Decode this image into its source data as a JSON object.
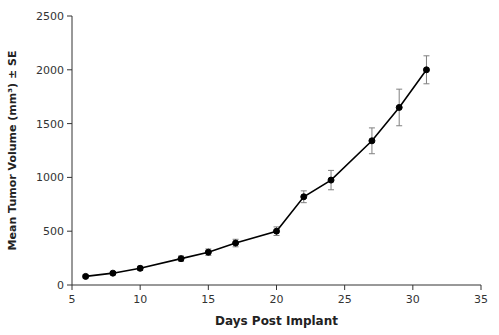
{
  "chart_data": {
    "type": "line",
    "xlabel": "Days Post Implant",
    "ylabel": "Mean Tumor Volume (mm³) ± SE",
    "x": [
      6,
      8,
      10,
      13,
      15,
      17,
      20,
      22,
      24,
      27,
      29,
      31
    ],
    "values": [
      80,
      110,
      155,
      245,
      305,
      390,
      500,
      820,
      975,
      1340,
      1650,
      2000
    ],
    "errors": [
      15,
      15,
      20,
      25,
      30,
      35,
      40,
      55,
      90,
      120,
      170,
      130
    ],
    "color": "#000000",
    "marker": "circle",
    "xlim": [
      5,
      35
    ],
    "ylim": [
      0,
      2500
    ],
    "xticks": [
      5,
      10,
      15,
      20,
      25,
      30,
      35
    ],
    "yticks": [
      0,
      500,
      1000,
      1500,
      2000,
      2500
    ],
    "grid": false
  }
}
